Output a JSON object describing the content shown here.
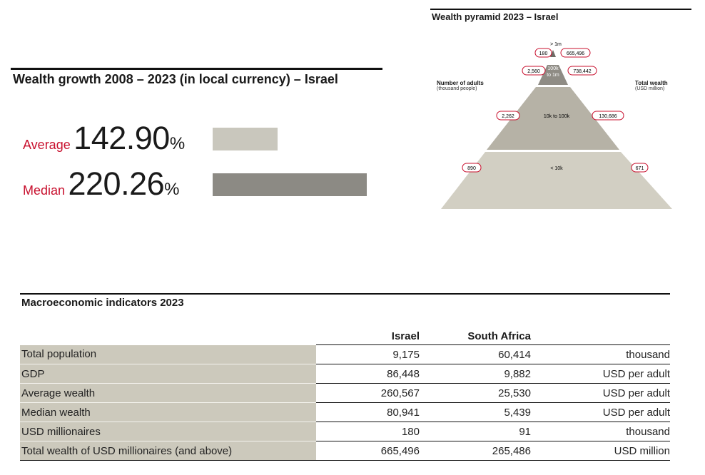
{
  "growth": {
    "title": "Wealth growth 2008 – 2023 (in local currency) – Israel",
    "average": {
      "label": "Average",
      "value": "142.90",
      "unit": "%",
      "pct": 142.9,
      "color": "#c9c7bd"
    },
    "median": {
      "label": "Median",
      "value": "220.26",
      "unit": "%",
      "pct": 220.26,
      "color": "#8c8a84"
    }
  },
  "pyramid": {
    "title": "Wealth pyramid 2023 – Israel",
    "left_title": "Number of adults",
    "left_sub": "(thousand people)",
    "right_title": "Total wealth",
    "right_sub": "(USD million)",
    "tiers": [
      {
        "band": "> 1m",
        "adults": "180",
        "wealth": "665,496"
      },
      {
        "band": "100k to 1m",
        "band_line1": "100k",
        "band_line2": "to 1m",
        "adults": "2,560",
        "wealth": "738,442"
      },
      {
        "band": "10k to 100k",
        "adults": "2,262",
        "wealth": "130,686"
      },
      {
        "band": "< 10k",
        "adults": "890",
        "wealth": "671"
      }
    ],
    "colors": {
      "top": "#6e6c66",
      "tier2": "#8f8c85",
      "tier3": "#b6b2a6",
      "base": "#d2cfc3",
      "bubble": "#c8102e"
    }
  },
  "macro": {
    "title": "Macroeconomic indicators 2023",
    "columns": [
      "Israel",
      "South Africa"
    ],
    "rows": [
      {
        "label": "Total population",
        "israel": "9,175",
        "south_africa": "60,414",
        "unit": "thousand"
      },
      {
        "label": "GDP",
        "israel": "86,448",
        "south_africa": "9,882",
        "unit": "USD per adult"
      },
      {
        "label": "Average wealth",
        "israel": "260,567",
        "south_africa": "25,530",
        "unit": "USD per adult"
      },
      {
        "label": "Median wealth",
        "israel": "80,941",
        "south_africa": "5,439",
        "unit": "USD per adult"
      },
      {
        "label": "USD millionaires",
        "israel": "180",
        "south_africa": "91",
        "unit": "thousand"
      },
      {
        "label": "Total wealth of USD millionaires (and above)",
        "israel": "665,496",
        "south_africa": "265,486",
        "unit": "USD million"
      }
    ]
  }
}
